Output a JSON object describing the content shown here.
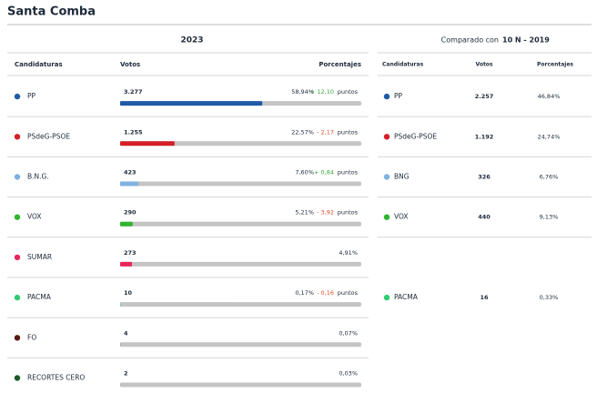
{
  "title": "Santa Comba",
  "results": {
    "year": "2023",
    "headers": [
      "Candidaturas",
      "Votos",
      "Porcentajes"
    ],
    "points_label": "puntos",
    "rows": [
      {
        "name": "PP",
        "color": "#1f5aa6",
        "votes": "3.277",
        "pct": 58.94,
        "pct_label": "58,94%",
        "change": "+ 12,10",
        "change_color": "#3aa63a"
      },
      {
        "name": "PSdeG-PSOE",
        "color": "#d42027",
        "votes": "1.255",
        "pct": 22.57,
        "pct_label": "22,57%",
        "change": "- 2,17",
        "change_color": "#e0502a"
      },
      {
        "name": "B.N.G.",
        "color": "#7fb2e0",
        "votes": "423",
        "pct": 7.6,
        "pct_label": "7,60%",
        "change": "+ 0,84",
        "change_color": "#3aa63a"
      },
      {
        "name": "VOX",
        "color": "#2fb52f",
        "votes": "290",
        "pct": 5.21,
        "pct_label": "5,21%",
        "change": "- 3,92",
        "change_color": "#e0502a"
      },
      {
        "name": "SUMAR",
        "color": "#e8255a",
        "votes": "273",
        "pct": 4.91,
        "pct_label": "4,91%"
      },
      {
        "name": "PACMA",
        "color": "#2ecc71",
        "votes": "10",
        "pct": 0.17,
        "pct_label": "0,17%",
        "change": "- 0,16",
        "change_color": "#e0502a"
      },
      {
        "name": "FO",
        "color": "#5a1a14",
        "votes": "4",
        "pct": 0.07,
        "pct_label": "0,07%"
      },
      {
        "name": "RECORTES CERO",
        "color": "#1c5a2a",
        "votes": "2",
        "pct": 0.03,
        "pct_label": "0,03%"
      }
    ]
  },
  "comparison": {
    "prefix": "Comparado con",
    "election": "10 N - 2019",
    "headers": [
      "Candidaturas",
      "Votos",
      "Porcentajes"
    ],
    "rows": [
      {
        "name": "PP",
        "color": "#1f5aa6",
        "votes": "2.257",
        "pct_label": "46,84%"
      },
      {
        "name": "PSdeG-PSOE",
        "color": "#d42027",
        "votes": "1.192",
        "pct_label": "24,74%"
      },
      {
        "name": "BNG",
        "color": "#7fb2e0",
        "votes": "326",
        "pct_label": "6,76%"
      },
      {
        "name": "VOX",
        "color": "#2fb52f",
        "votes": "440",
        "pct_label": "9,13%"
      },
      null,
      {
        "name": "PACMA",
        "color": "#2ecc71",
        "votes": "16",
        "pct_label": "0,33%"
      }
    ]
  }
}
